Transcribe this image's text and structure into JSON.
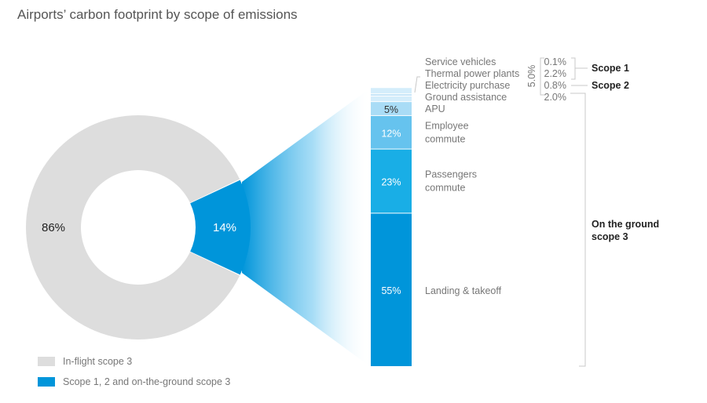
{
  "colors": {
    "grey": "#dddddd",
    "blue": "#0095da",
    "bar_landing": "#0095da",
    "bar_passengers": "#19aee6",
    "bar_employee": "#66c3ee",
    "bar_apu": "#a9dcf6",
    "bar_small": "#d4edfb",
    "bracket": "#c8c8c8"
  },
  "chart_data": [
    {
      "type": "pie",
      "title": "Airports’ carbon footprint by scope of emissions",
      "slices": [
        {
          "label": "In-flight scope 3",
          "value": 86,
          "display": "86%"
        },
        {
          "label": "Scope 1, 2 and on-the-ground scope 3",
          "value": 14,
          "display": "14%"
        }
      ],
      "legend_position": "bottom-left"
    },
    {
      "type": "bar",
      "stacked": true,
      "segments": [
        {
          "label": "Landing & takeoff",
          "value": 55,
          "display": "55%"
        },
        {
          "label": "Passengers commute",
          "label_lines": [
            "Passengers",
            "commute"
          ],
          "value": 23,
          "display": "23%"
        },
        {
          "label": "Employee commute",
          "label_lines": [
            "Employee",
            "commute"
          ],
          "value": 12,
          "display": "12%"
        },
        {
          "label": "APU",
          "value": 5,
          "display": "5%"
        },
        {
          "label": "Ground assistance",
          "value": 2.0,
          "display": "2.0%"
        },
        {
          "label": "Electricity purchase",
          "value": 0.8,
          "display": "0.8%"
        },
        {
          "label": "Thermal power plants",
          "value": 2.2,
          "display": "2.2%"
        },
        {
          "label": "Service vehicles",
          "value": 0.1,
          "display": "0.1%"
        }
      ],
      "group_total_label": "5.0%",
      "scope_labels": {
        "scope1": "Scope 1",
        "scope2": "Scope 2",
        "scope3_line1": "On the ground",
        "scope3_line2": "scope 3"
      }
    }
  ]
}
